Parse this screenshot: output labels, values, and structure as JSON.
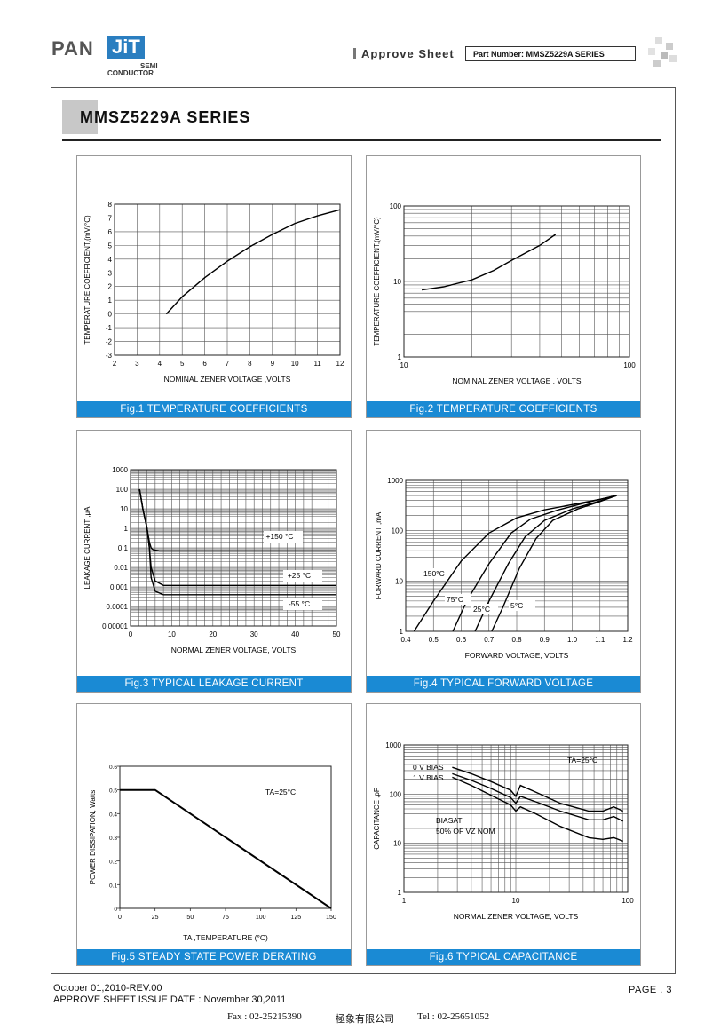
{
  "header": {
    "logo_pan": "PAN",
    "logo_jit": "JiT",
    "logo_semi": "SEMI",
    "logo_conductor": "CONDUCTOR",
    "approve_sheet": "Approve Sheet",
    "part_number": "Part Number: MMSZ5229A SERIES"
  },
  "title": "MMSZ5229A SERIES",
  "figures": [
    {
      "caption": "Fig.1 TEMPERATURE COEFFICIENTS",
      "chart_data": {
        "type": "line",
        "xlabel": "NOMINAL ZENER VOLTAGE ,VOLTS",
        "ylabel": "TEMPERATURE COEFFICIENT,(mV/°C)",
        "x_ticks": [
          "2",
          "3",
          "4",
          "5",
          "6",
          "7",
          "8",
          "9",
          "10",
          "11",
          "12"
        ],
        "y_ticks": [
          "-3",
          "-2",
          "-1",
          "0",
          "1",
          "2",
          "3",
          "4",
          "5",
          "6",
          "7",
          "8"
        ],
        "xlim": [
          2,
          12
        ],
        "ylim": [
          -3,
          8
        ],
        "grid": true,
        "series": [
          {
            "x": [
              4.3,
              5,
              6,
              7,
              8,
              9,
              10,
              11,
              12
            ],
            "y": [
              0,
              1.25,
              2.65,
              3.85,
              4.9,
              5.8,
              6.6,
              7.15,
              7.6
            ]
          }
        ]
      }
    },
    {
      "caption": "Fig.2 TEMPERATURE COEFFICIENTS",
      "chart_data": {
        "type": "line",
        "xlabel": "NOMINAL ZENER VOLTAGE , VOLTS",
        "ylabel": "TEMPERATURE COEFFICIENT,(mV/°C)",
        "x_ticks": [
          "10",
          "100"
        ],
        "y_ticks": [
          "1",
          "10",
          "100"
        ],
        "xscale": "log",
        "yscale": "log",
        "xlim": [
          10,
          100
        ],
        "ylim": [
          1,
          100
        ],
        "grid": true,
        "series": [
          {
            "x": [
              12,
              15,
              20,
              25,
              30,
              40,
              47
            ],
            "y": [
              7.7,
              8.5,
              10.5,
              14,
              19,
              30,
              42
            ]
          }
        ]
      }
    },
    {
      "caption": "Fig.3 TYPICAL LEAKAGE CURRENT",
      "chart_data": {
        "type": "line",
        "xlabel": "NORMAL ZENER VOLTAGE, VOLTS",
        "ylabel": "LEAKAGE CURRENT ,μA",
        "x_ticks": [
          "0",
          "10",
          "20",
          "30",
          "40",
          "50"
        ],
        "y_ticks": [
          "0.00001",
          "0.0001",
          "0.001",
          "0.01",
          "0.1",
          "1",
          "10",
          "100",
          "1000"
        ],
        "yscale": "log",
        "xlim": [
          0,
          50
        ],
        "ylim": [
          1e-05,
          1000
        ],
        "grid": true,
        "annotations": [
          "+150 °C",
          "+25 °C",
          "-55 °C"
        ],
        "series": [
          {
            "x": [
              2.2,
              3,
              4,
              4.6,
              5,
              5.5,
              7,
              50
            ],
            "y": [
              100,
              10,
              1,
              0.2,
              0.1,
              0.08,
              0.07,
              0.07
            ]
          },
          {
            "x": [
              2.2,
              3,
              4,
              4.6,
              5,
              6,
              8,
              50
            ],
            "y": [
              100,
              10,
              1,
              0.1,
              0.01,
              0.002,
              0.0012,
              0.0012
            ]
          },
          {
            "x": [
              2.2,
              3,
              4,
              4.6,
              5,
              6,
              8,
              50
            ],
            "y": [
              100,
              10,
              1,
              0.1,
              0.003,
              0.0006,
              0.0004,
              0.0004
            ]
          }
        ]
      }
    },
    {
      "caption": "Fig.4 TYPICAL FORWARD VOLTAGE",
      "chart_data": {
        "type": "line",
        "xlabel": "FORWARD VOLTAGE, VOLTS",
        "ylabel": "FORWARD CURRENT ,mA",
        "x_ticks": [
          "0.4",
          "0.5",
          "0.6",
          "0.7",
          "0.8",
          "0.9",
          "1.0",
          "1.1",
          "1.2"
        ],
        "y_ticks": [
          "1",
          "10",
          "100",
          "1000"
        ],
        "yscale": "log",
        "xlim": [
          0.4,
          1.2
        ],
        "ylim": [
          1,
          1000
        ],
        "grid": true,
        "series": [
          {
            "name": "150°C",
            "x": [
              0.43,
              0.5,
              0.6,
              0.7,
              0.8,
              0.9,
              1.0,
              1.1,
              1.16
            ],
            "y": [
              1,
              4,
              25,
              90,
              180,
              260,
              330,
              420,
              500
            ]
          },
          {
            "name": "75°C",
            "x": [
              0.57,
              0.62,
              0.7,
              0.78,
              0.85,
              0.95,
              1.05,
              1.16
            ],
            "y": [
              1,
              4,
              22,
              90,
              170,
              260,
              360,
              500
            ]
          },
          {
            "name": "25°C",
            "x": [
              0.65,
              0.7,
              0.77,
              0.83,
              0.9,
              1.0,
              1.1,
              1.16
            ],
            "y": [
              1,
              4,
              22,
              75,
              160,
              270,
              390,
              500
            ]
          },
          {
            "name": "5°C",
            "x": [
              0.71,
              0.75,
              0.81,
              0.87,
              0.93,
              1.02,
              1.1,
              1.16
            ],
            "y": [
              1,
              3,
              18,
              70,
              160,
              270,
              380,
              500
            ]
          }
        ]
      }
    },
    {
      "caption": "Fig.5 STEADY STATE POWER DERATING",
      "chart_data": {
        "type": "line",
        "xlabel": "TA ,TEMPERATURE (°C)",
        "ylabel": "POWER DISSIPATION, Watts",
        "x_ticks": [
          "0",
          "25",
          "50",
          "75",
          "100",
          "125",
          "150"
        ],
        "y_ticks": [
          "0",
          "0.1",
          "0.2",
          "0.3",
          "0.4",
          "0.5",
          "0.6"
        ],
        "xlim": [
          0,
          150
        ],
        "ylim": [
          0,
          0.6
        ],
        "grid": false,
        "annotations": [
          "TA=25°C"
        ],
        "series": [
          {
            "x": [
              0,
              25,
              150
            ],
            "y": [
              0.5,
              0.5,
              0
            ]
          }
        ]
      }
    },
    {
      "caption": "Fig.6 TYPICAL CAPACITANCE",
      "chart_data": {
        "type": "line",
        "xlabel": "NORMAL ZENER VOLTAGE, VOLTS",
        "ylabel": "CAPACITANCE ,pF",
        "x_ticks": [
          "1",
          "10",
          "100"
        ],
        "y_ticks": [
          "1",
          "10",
          "100",
          "1000"
        ],
        "xscale": "log",
        "yscale": "log",
        "xlim": [
          1,
          100
        ],
        "ylim": [
          1,
          1000
        ],
        "grid": true,
        "annotations": [
          "TA=25°C",
          "0 V BIAS",
          "1 V BIAS",
          "BIASAT",
          "50% OF VZ NOM"
        ],
        "series": [
          {
            "name": "0 V BIAS",
            "x": [
              2.7,
              4,
              6,
              9,
              10,
              11,
              15,
              25,
              45,
              60,
              75,
              91
            ],
            "y": [
              350,
              260,
              180,
              120,
              90,
              150,
              110,
              65,
              45,
              45,
              55,
              45
            ]
          },
          {
            "name": "1 V BIAS",
            "x": [
              2.7,
              4,
              6,
              9,
              10,
              11,
              15,
              25,
              45,
              60,
              75,
              91
            ],
            "y": [
              260,
              190,
              130,
              85,
              65,
              90,
              70,
              45,
              30,
              30,
              35,
              28
            ]
          },
          {
            "name": "BIASAT 50% OF VZ NOM",
            "x": [
              2.7,
              4,
              6,
              9,
              10,
              11,
              15,
              25,
              45,
              60,
              75,
              91
            ],
            "y": [
              220,
              150,
              95,
              60,
              45,
              55,
              40,
              22,
              13,
              12,
              13,
              11
            ]
          }
        ]
      }
    }
  ],
  "footer": {
    "date_rev": "October 01,2010-REV.00",
    "issue_date": "APPROVE SHEET ISSUE DATE : November 30,2011",
    "page": "PAGE . 3",
    "fax": "Fax : 02-25215390",
    "company": "極象有限公司",
    "tel": "Tel : 02-25651052"
  }
}
